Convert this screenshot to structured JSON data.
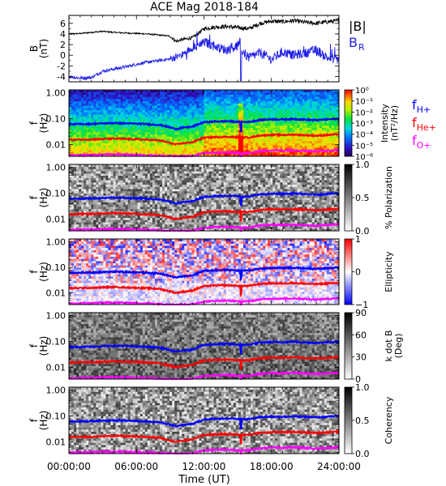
{
  "title": "ACE Mag 2018-184",
  "x_axis": {
    "label": "Time (UT)",
    "tick_labels": [
      "00:00:00",
      "06:00:00",
      "12:00:00",
      "18:00:00",
      "24:00:00"
    ],
    "range_hours": [
      0,
      24
    ]
  },
  "colors": {
    "B": "#000000",
    "BR": "#1e1ee6",
    "fH": "#0000ff",
    "fHe": "#ff0000",
    "fO": "#ff00ff"
  },
  "chart_data": [
    {
      "type": "line",
      "ylabel_top": "B",
      "ylabel_bottom": "(nT)",
      "ylim": [
        -5,
        7.5
      ],
      "y_ticks": [
        6,
        4,
        2,
        0,
        -2,
        -4
      ],
      "y_tick_labels": [
        "6",
        "4",
        "2",
        "0",
        "-2",
        "-4"
      ],
      "legend": [
        {
          "label": "|B|",
          "color": "#000000"
        },
        {
          "label": "B",
          "sub": "R",
          "color": "#1e1ee6"
        }
      ],
      "series": [
        {
          "name": "|B|",
          "x": [
            0,
            1,
            2,
            3,
            4,
            5,
            6,
            7,
            8,
            9,
            9.5,
            10,
            11,
            12,
            13,
            14,
            15,
            16,
            17,
            18,
            19,
            20,
            21,
            22,
            23,
            24
          ],
          "y": [
            4.0,
            4.1,
            4.3,
            4.5,
            4.3,
            4.2,
            4.1,
            4.0,
            3.8,
            3.6,
            2.6,
            2.9,
            3.3,
            5.0,
            5.3,
            5.4,
            5.2,
            5.0,
            6.0,
            6.4,
            6.3,
            6.5,
            6.2,
            6.0,
            6.3,
            6.5
          ]
        },
        {
          "name": "BR",
          "x": [
            0,
            1,
            2,
            3,
            4,
            5,
            6,
            7,
            8,
            9,
            10,
            11,
            12,
            13,
            14,
            15,
            16,
            17,
            18,
            19,
            20,
            21,
            22,
            23,
            24
          ],
          "y": [
            -4.0,
            -4.3,
            -4.2,
            -3.0,
            -2.6,
            -2.2,
            -1.7,
            -1.3,
            -1.0,
            -0.7,
            0.0,
            1.5,
            2.5,
            1.7,
            1.0,
            1.8,
            -0.5,
            0.5,
            -0.8,
            0.6,
            0.0,
            0.4,
            1.0,
            -0.5,
            -0.8
          ]
        }
      ]
    },
    {
      "type": "heatmap",
      "title": "Intensity",
      "ylabel_top": "f",
      "ylabel_bottom": "(Hz)",
      "colorbar_title": "Intensity",
      "colorbar_unit": "(nT²/Hz)",
      "colorbar_ticks": [
        "10⁰",
        "10⁻¹",
        "10⁻²",
        "10⁻³",
        "10⁻⁴",
        "10⁻⁵",
        "10⁻⁶"
      ],
      "legend": [
        {
          "label": "f",
          "sub": "H+",
          "color": "#0000ff"
        },
        {
          "label": "f",
          "sub": "He+",
          "color": "#ff0000"
        },
        {
          "label": "f",
          "sub": "O+",
          "color": "#ff00ff"
        }
      ]
    },
    {
      "type": "heatmap",
      "title": "% Polarization",
      "ylabel_top": "f",
      "ylabel_bottom": "(Hz)",
      "colorbar_title": "% Polarization",
      "colorbar_ticks": [
        "1.0",
        "0.5",
        "0.0"
      ]
    },
    {
      "type": "heatmap",
      "title": "Ellipticity",
      "ylabel_top": "f",
      "ylabel_bottom": "(Hz)",
      "colorbar_title": "Ellipticity",
      "colorbar_ticks": [
        "1",
        "0",
        "−1"
      ]
    },
    {
      "type": "heatmap",
      "title": "k dot B",
      "ylabel_top": "f",
      "ylabel_bottom": "(Hz)",
      "colorbar_title": "k dot B",
      "colorbar_unit": "(Deg)",
      "colorbar_ticks": [
        "90",
        "60",
        "30",
        "0"
      ]
    },
    {
      "type": "heatmap",
      "title": "Coherency",
      "ylabel_top": "f",
      "ylabel_bottom": "(Hz)",
      "colorbar_title": "Coherency",
      "colorbar_ticks": [
        "1.0",
        "0.5",
        "0.0"
      ]
    }
  ],
  "freq_axis": {
    "ylim_hz": [
      0.0035,
      1.3
    ],
    "ticks_hz": [
      1.0,
      0.1,
      0.01
    ],
    "tick_labels": [
      "1.00",
      "0.10",
      "0.01"
    ]
  },
  "gyro_lines": [
    {
      "name": "fH+",
      "color": "#0000ff",
      "x": [
        0,
        2,
        4,
        6,
        8,
        9.5,
        10,
        11,
        12,
        13,
        14,
        15.3,
        16,
        17,
        18,
        19,
        20,
        21,
        22,
        23,
        24
      ],
      "y_hz": [
        0.061,
        0.063,
        0.068,
        0.064,
        0.058,
        0.04,
        0.044,
        0.049,
        0.073,
        0.078,
        0.08,
        0.075,
        0.075,
        0.09,
        0.095,
        0.094,
        0.097,
        0.092,
        0.088,
        0.094,
        0.1
      ]
    },
    {
      "name": "fHe+",
      "color": "#ff0000",
      "x": [
        0,
        2,
        4,
        6,
        8,
        9.5,
        10,
        11,
        12,
        13,
        14,
        15.3,
        16,
        17,
        18,
        19,
        20,
        21,
        22,
        23,
        24
      ],
      "y_hz": [
        0.0153,
        0.0158,
        0.017,
        0.016,
        0.0145,
        0.01,
        0.011,
        0.0123,
        0.0183,
        0.0195,
        0.02,
        0.0188,
        0.0188,
        0.0225,
        0.0238,
        0.0235,
        0.0243,
        0.023,
        0.022,
        0.0235,
        0.025
      ]
    },
    {
      "name": "fO+",
      "color": "#ff00ff",
      "x": [
        0,
        2,
        4,
        6,
        8,
        9.5,
        10,
        11,
        12,
        13,
        14,
        15.3,
        16,
        17,
        18,
        19,
        20,
        21,
        22,
        23,
        24
      ],
      "y_hz": [
        0.0038,
        0.004,
        0.0042,
        0.004,
        0.0037,
        0.0035,
        0.0035,
        0.0036,
        0.0046,
        0.0049,
        0.005,
        0.0047,
        0.0047,
        0.0056,
        0.006,
        0.0059,
        0.0061,
        0.0058,
        0.0055,
        0.0059,
        0.0062
      ]
    }
  ]
}
